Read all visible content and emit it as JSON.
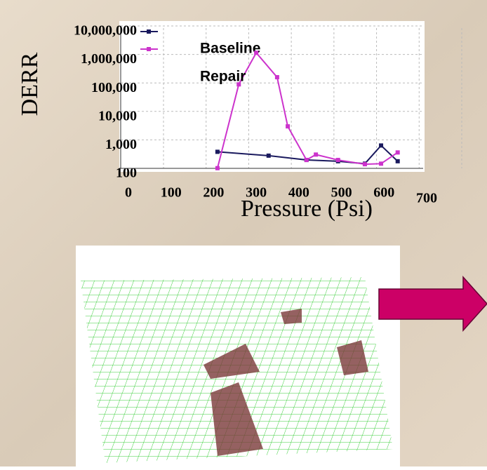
{
  "chart_data": {
    "type": "line",
    "x_label": "Pressure (Psi)",
    "y_label": "DERR",
    "log_y": true,
    "grid": true,
    "xlim": [
      0,
      700
    ],
    "xticks": [
      0,
      100,
      200,
      300,
      400,
      500,
      600,
      700
    ],
    "ylim": [
      100,
      10000000
    ],
    "yticks": [
      100,
      {
        "value": 1000,
        "label": "1,000"
      },
      {
        "value": 10000,
        "label": "10,000"
      },
      {
        "value": 100000,
        "label": "100,000"
      },
      {
        "value": 1000000,
        "label": "1,000,000"
      },
      {
        "value": 10000000,
        "label": "10,000,000"
      }
    ],
    "series": [
      {
        "name": "Baseline",
        "color": "#1a1a5e",
        "x": [
          209,
          329,
          418,
          492,
          555,
          593,
          632
        ],
        "values": [
          600,
          440,
          310,
          280,
          230,
          1000,
          280
        ]
      },
      {
        "name": "Repair",
        "color": "#cc33cc",
        "x": [
          209,
          259,
          300,
          349,
          374,
          418,
          440,
          492,
          555,
          593,
          632
        ],
        "values": [
          160,
          140000,
          1800000,
          250000,
          4700,
          310,
          480,
          310,
          220,
          230,
          570
        ]
      }
    ]
  }
}
